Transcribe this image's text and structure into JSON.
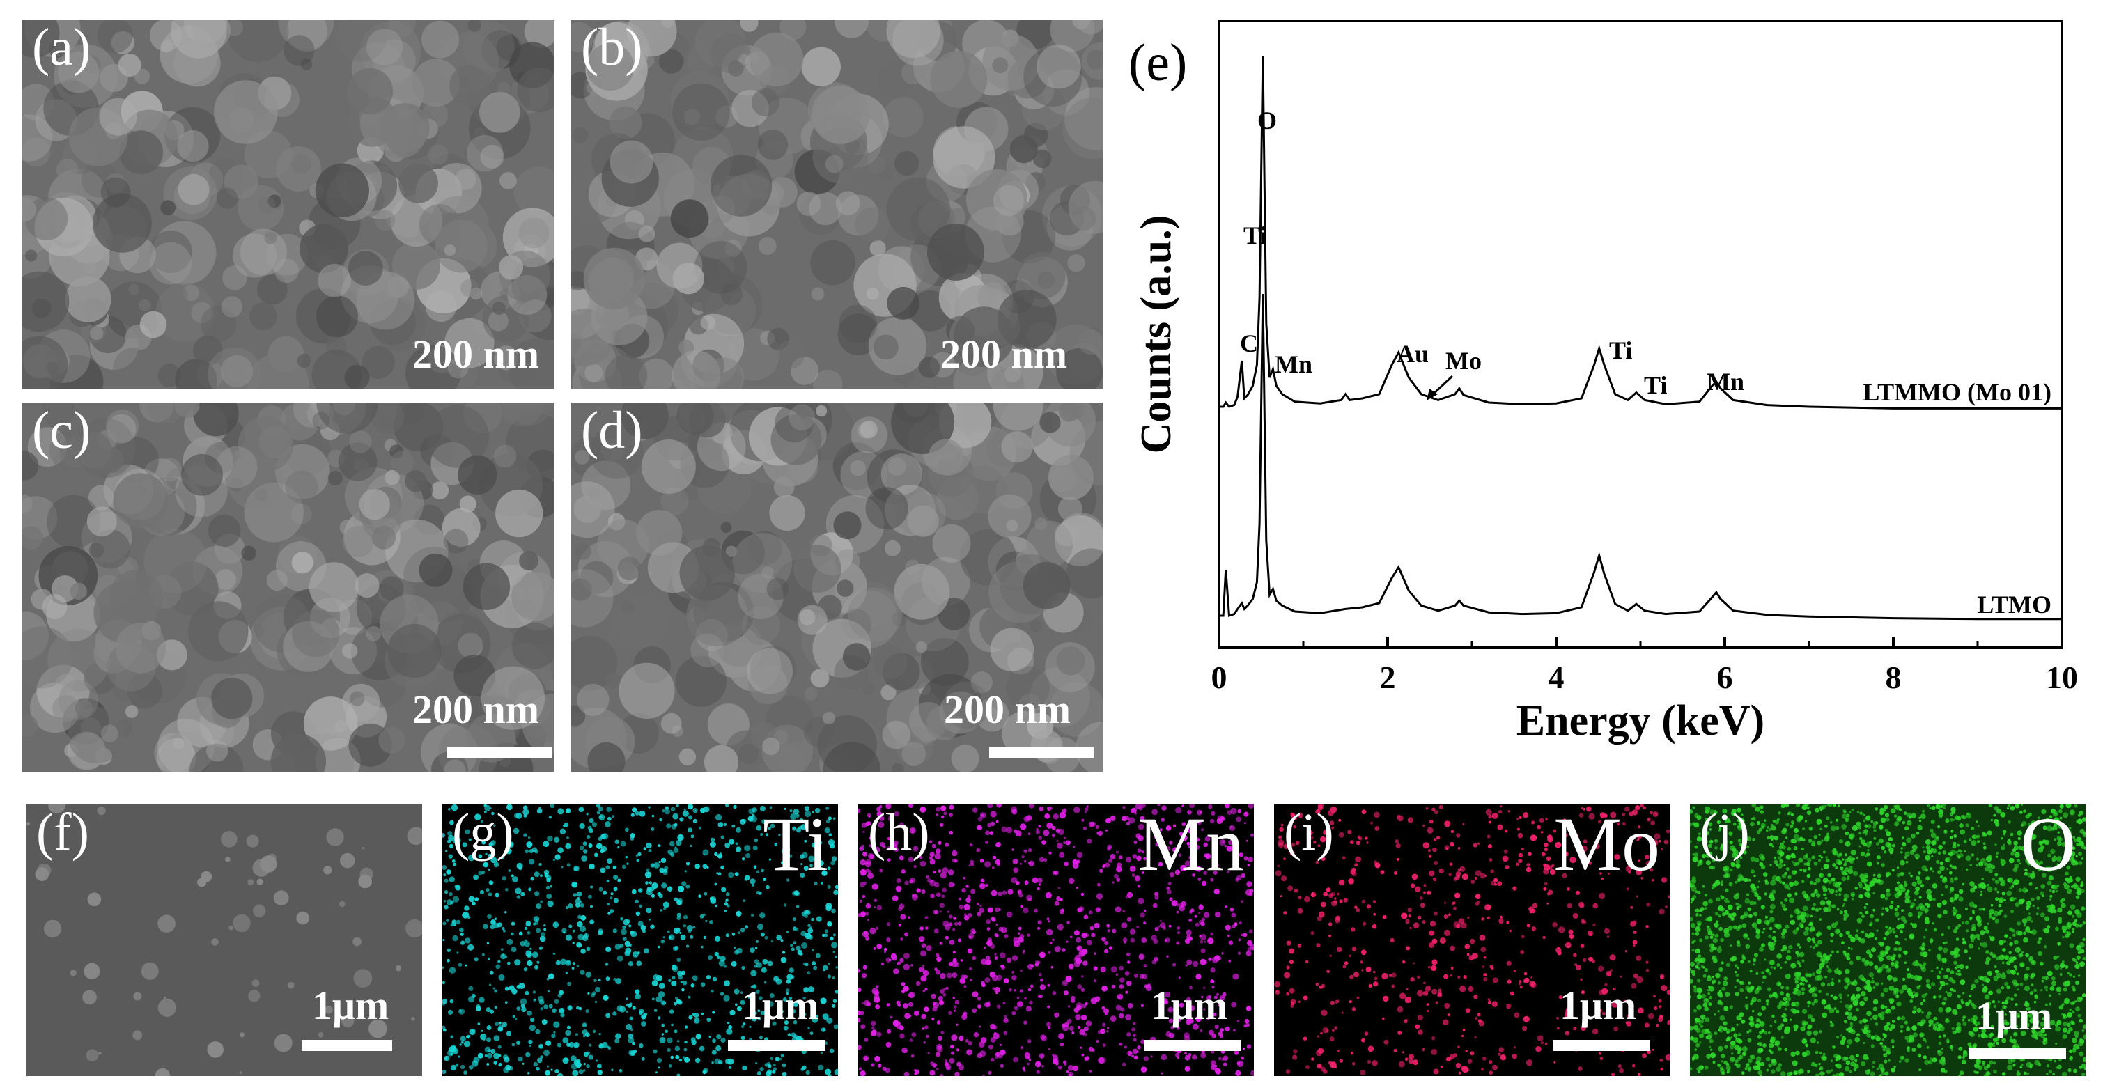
{
  "sem_panels": [
    {
      "label": "(a)",
      "scale": "200 nm"
    },
    {
      "label": "(b)",
      "scale": "200 nm"
    },
    {
      "label": "(c)",
      "scale": "200 nm"
    },
    {
      "label": "(d)",
      "scale": "200 nm"
    }
  ],
  "map_panels": [
    {
      "label": "(f)",
      "element": "",
      "scale": "1μm",
      "color": "#8a8a8a"
    },
    {
      "label": "(g)",
      "element": "Ti",
      "scale": "1μm",
      "color": "#19d6d6"
    },
    {
      "label": "(h)",
      "element": "Mn",
      "scale": "1μm",
      "color": "#e020e6"
    },
    {
      "label": "(i)",
      "element": "Mo",
      "scale": "1μm",
      "color": "#f0206a"
    },
    {
      "label": "(j)",
      "element": "O",
      "scale": "1μm",
      "color": "#2ed42a"
    }
  ],
  "chart_data": {
    "type": "line",
    "panel_label": "(e)",
    "xlabel": "Energy (keV)",
    "ylabel": "Counts (a.u.)",
    "xlim": [
      0,
      10
    ],
    "xticks": [
      "0",
      "2",
      "4",
      "6",
      "8",
      "10"
    ],
    "grid": false,
    "series": [
      {
        "name": "LTMMO (Mo 01)",
        "x": [
          0.0,
          0.05,
          0.08,
          0.12,
          0.18,
          0.22,
          0.27,
          0.3,
          0.34,
          0.4,
          0.45,
          0.48,
          0.52,
          0.56,
          0.6,
          0.64,
          0.68,
          0.75,
          0.9,
          1.2,
          1.45,
          1.5,
          1.55,
          1.7,
          1.9,
          2.05,
          2.13,
          2.25,
          2.4,
          2.6,
          2.8,
          2.85,
          2.9,
          3.2,
          3.6,
          4.0,
          4.3,
          4.45,
          4.51,
          4.57,
          4.7,
          4.85,
          4.95,
          5.05,
          5.3,
          5.7,
          5.85,
          5.9,
          5.95,
          6.1,
          6.5,
          7.0,
          8.0,
          9.0,
          10.0
        ],
        "y": [
          0.3,
          0.3,
          0.35,
          0.3,
          0.32,
          0.42,
          0.85,
          0.4,
          0.44,
          0.55,
          0.8,
          1.6,
          4.5,
          1.3,
          0.65,
          0.75,
          0.55,
          0.45,
          0.36,
          0.34,
          0.38,
          0.45,
          0.38,
          0.4,
          0.45,
          0.8,
          0.95,
          0.65,
          0.45,
          0.38,
          0.45,
          0.52,
          0.44,
          0.35,
          0.33,
          0.34,
          0.4,
          0.8,
          1.0,
          0.8,
          0.45,
          0.38,
          0.47,
          0.38,
          0.33,
          0.36,
          0.55,
          0.6,
          0.52,
          0.38,
          0.32,
          0.3,
          0.28,
          0.28,
          0.28
        ]
      },
      {
        "name": "LTMO",
        "x": [
          0.0,
          0.05,
          0.08,
          0.12,
          0.18,
          0.22,
          0.27,
          0.3,
          0.34,
          0.4,
          0.45,
          0.48,
          0.52,
          0.56,
          0.6,
          0.64,
          0.68,
          0.75,
          0.9,
          1.2,
          1.5,
          1.7,
          1.9,
          2.05,
          2.13,
          2.25,
          2.4,
          2.6,
          2.8,
          2.85,
          2.9,
          3.2,
          3.6,
          4.0,
          4.3,
          4.45,
          4.51,
          4.57,
          4.7,
          4.85,
          4.95,
          5.05,
          5.3,
          5.7,
          5.85,
          5.9,
          5.95,
          6.1,
          6.5,
          7.0,
          8.0,
          9.0,
          10.0
        ],
        "y": [
          0.3,
          0.3,
          0.85,
          0.3,
          0.32,
          0.38,
          0.45,
          0.38,
          0.42,
          0.5,
          0.7,
          1.4,
          4.15,
          1.2,
          0.55,
          0.62,
          0.48,
          0.42,
          0.35,
          0.33,
          0.38,
          0.4,
          0.45,
          0.75,
          0.88,
          0.6,
          0.42,
          0.36,
          0.42,
          0.48,
          0.42,
          0.34,
          0.32,
          0.33,
          0.4,
          0.82,
          1.02,
          0.8,
          0.44,
          0.36,
          0.44,
          0.36,
          0.32,
          0.35,
          0.52,
          0.58,
          0.5,
          0.36,
          0.31,
          0.29,
          0.27,
          0.26,
          0.26
        ]
      }
    ],
    "peak_labels": [
      {
        "text": "O",
        "x": 0.52
      },
      {
        "text": "Ti",
        "x": 0.3
      },
      {
        "text": "C",
        "x": 0.27
      },
      {
        "text": "Mn",
        "x": 0.98
      },
      {
        "text": "Au",
        "x": 2.13
      },
      {
        "text": "Mo",
        "x": 2.72
      },
      {
        "text": "Ti",
        "x": 4.51
      },
      {
        "text": "Ti",
        "x": 4.95
      },
      {
        "text": "Mn",
        "x": 5.9
      }
    ]
  }
}
